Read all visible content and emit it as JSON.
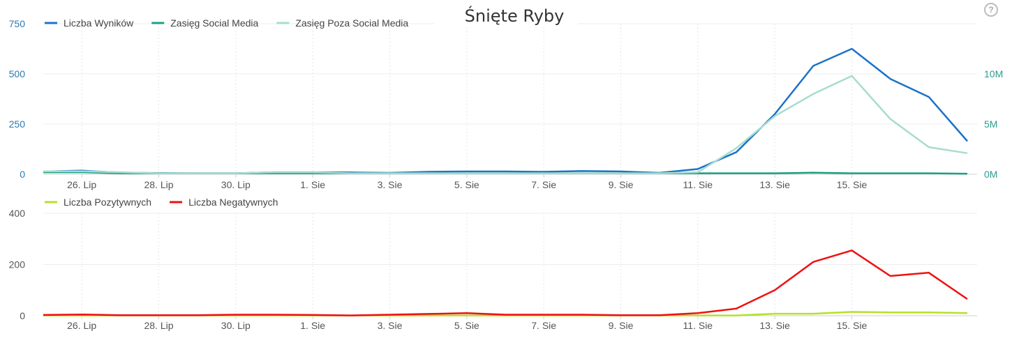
{
  "chart_data": [
    {
      "type": "line",
      "title": "Śnięte Ryby",
      "x_labels": [
        "26. Lip",
        "28. Lip",
        "30. Lip",
        "1. Sie",
        "3. Sie",
        "5. Sie",
        "7. Sie",
        "9. Sie",
        "11. Sie",
        "13. Sie",
        "15. Sie"
      ],
      "y_ticks_left": [
        "0",
        "250",
        "500",
        "750"
      ],
      "y_ticks_right": [
        "0M",
        "5M",
        "10M"
      ],
      "ylim_left": [
        0,
        750
      ],
      "ylim_right": [
        0,
        15
      ],
      "grid": true,
      "legend_position": "top-left",
      "series": [
        {
          "name": "Liczba Wyników",
          "axis": "left",
          "color": "#1a73c8",
          "values": [
            14,
            18,
            8,
            6,
            5,
            5,
            10,
            10,
            9,
            7,
            12,
            14,
            14,
            12,
            16,
            14,
            7,
            26,
            110,
            300,
            540,
            625,
            475,
            385,
            165
          ]
        },
        {
          "name": "Zasięg Social Media",
          "axis": "right",
          "color": "#1aa085",
          "values": [
            0.2,
            0.2,
            0.1,
            0.1,
            0.1,
            0.1,
            0.1,
            0.1,
            0.1,
            0.1,
            0.1,
            0.1,
            0.1,
            0.1,
            0.1,
            0.1,
            0.1,
            0.1,
            0.1,
            0.1,
            0.15,
            0.1,
            0.1,
            0.1,
            0.05
          ]
        },
        {
          "name": "Zasięg Poza Social Media",
          "axis": "right",
          "color": "#a6dccf",
          "values": [
            0.3,
            0.3,
            0.2,
            0.1,
            0.1,
            0.1,
            0.2,
            0.2,
            0.1,
            0.1,
            0.1,
            0.1,
            0.1,
            0.1,
            0.1,
            0.1,
            0.1,
            0.2,
            2.6,
            5.8,
            8.0,
            9.8,
            5.5,
            2.7,
            2.1
          ]
        }
      ]
    },
    {
      "type": "line",
      "x_labels": [
        "26. Lip",
        "28. Lip",
        "30. Lip",
        "1. Sie",
        "3. Sie",
        "5. Sie",
        "7. Sie",
        "9. Sie",
        "11. Sie",
        "13. Sie",
        "15. Sie"
      ],
      "y_ticks_left": [
        "0",
        "200",
        "400"
      ],
      "ylim_left": [
        0,
        400
      ],
      "grid": true,
      "legend_position": "top-left",
      "series": [
        {
          "name": "Liczba Pozytywnych",
          "axis": "left",
          "color": "#b5e02a",
          "values": [
            1,
            1,
            1,
            1,
            1,
            1,
            1,
            1,
            1,
            1,
            1,
            1,
            1,
            1,
            1,
            1,
            1,
            1,
            1,
            8,
            8,
            15,
            13,
            13,
            10
          ]
        },
        {
          "name": "Liczba Negatywnych",
          "axis": "left",
          "color": "#ee1111",
          "values": [
            3,
            5,
            2,
            2,
            2,
            4,
            4,
            3,
            1,
            4,
            7,
            10,
            4,
            4,
            4,
            2,
            2,
            10,
            28,
            100,
            210,
            255,
            155,
            168,
            65
          ]
        }
      ]
    }
  ],
  "help_icon": "help-question-icon",
  "help_label": "?"
}
